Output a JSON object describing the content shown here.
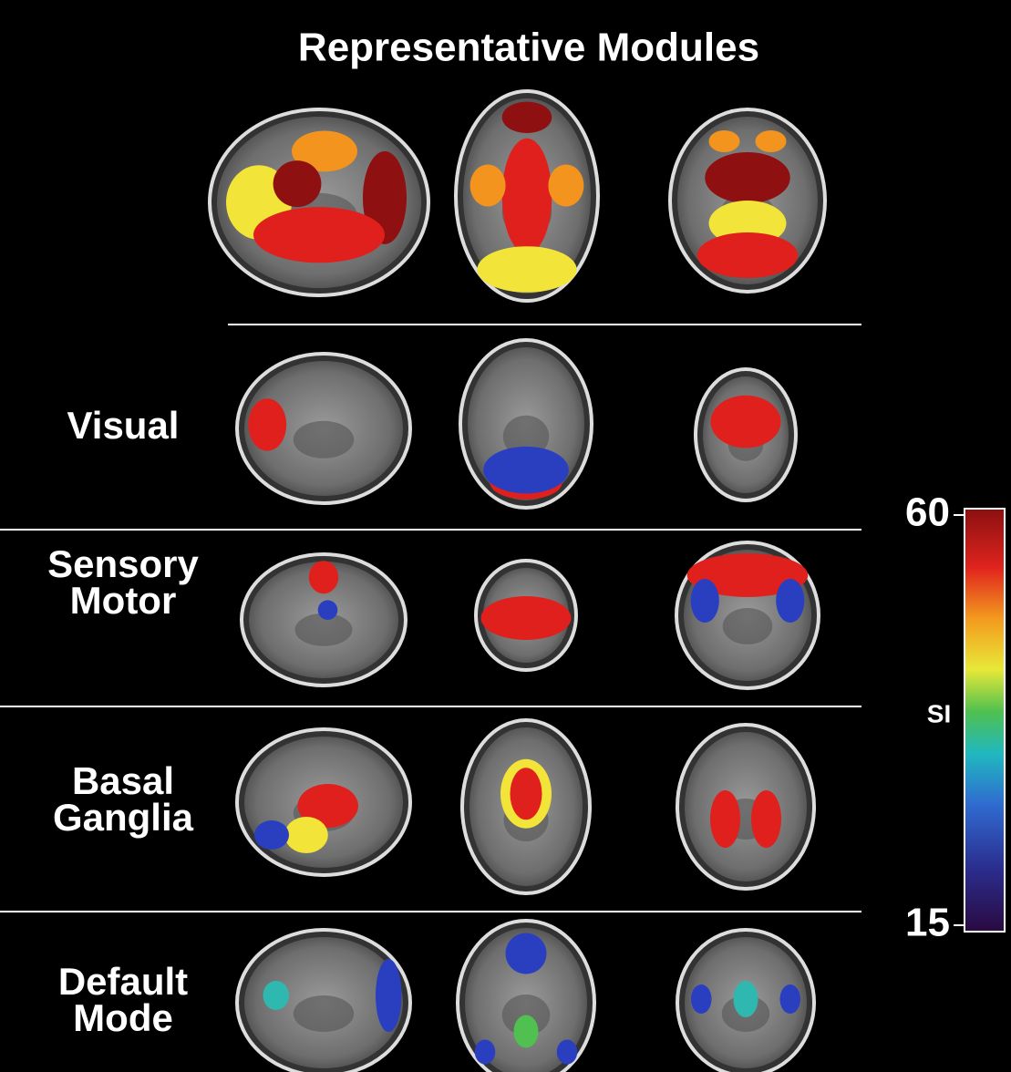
{
  "title": "Representative Modules",
  "rows": [
    {
      "label": [
        "Visual"
      ]
    },
    {
      "label": [
        "Sensory",
        "Motor"
      ]
    },
    {
      "label": [
        "Basal",
        "Ganglia"
      ]
    },
    {
      "label": [
        "Default",
        "Mode"
      ]
    }
  ],
  "colorbar": {
    "label": "SI",
    "lim": [
      15,
      60
    ],
    "ticks": [
      15,
      60
    ]
  }
}
